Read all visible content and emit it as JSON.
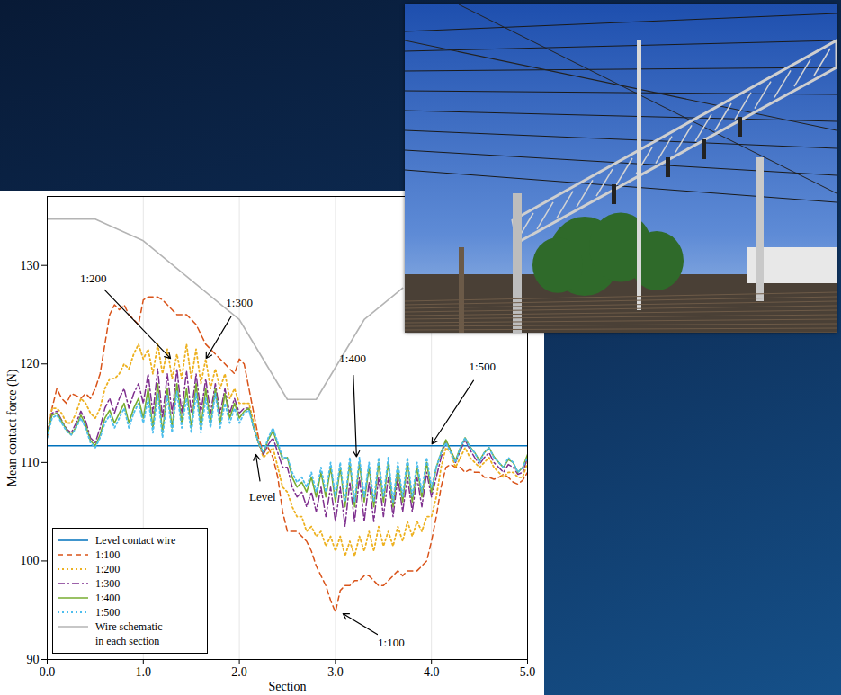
{
  "chart_data": {
    "type": "line",
    "x_label": "Section",
    "y_label": "Mean contact force (N)",
    "xlim": [
      0,
      5
    ],
    "xticks": [
      0,
      1,
      2,
      3,
      4,
      5
    ],
    "ylim": [
      90,
      137
    ],
    "yticks": [
      90,
      100,
      110,
      120,
      130
    ],
    "grid": "x",
    "legend": "lower left",
    "x": [
      0,
      0.05,
      0.1,
      0.15,
      0.2,
      0.25,
      0.3,
      0.35,
      0.4,
      0.45,
      0.5,
      0.55,
      0.6,
      0.65,
      0.7,
      0.75,
      0.8,
      0.85,
      0.9,
      0.95,
      1,
      1.05,
      1.1,
      1.15,
      1.2,
      1.25,
      1.3,
      1.35,
      1.4,
      1.45,
      1.5,
      1.55,
      1.6,
      1.65,
      1.7,
      1.75,
      1.8,
      1.85,
      1.9,
      1.95,
      2,
      2.05,
      2.1,
      2.15,
      2.2,
      2.25,
      2.3,
      2.35,
      2.4,
      2.45,
      2.5,
      2.55,
      2.6,
      2.65,
      2.7,
      2.75,
      2.8,
      2.85,
      2.9,
      2.95,
      3,
      3.05,
      3.1,
      3.15,
      3.2,
      3.25,
      3.3,
      3.35,
      3.4,
      3.45,
      3.5,
      3.55,
      3.6,
      3.65,
      3.7,
      3.75,
      3.8,
      3.85,
      3.9,
      3.95,
      4,
      4.05,
      4.1,
      4.15,
      4.2,
      4.25,
      4.3,
      4.35,
      4.4,
      4.45,
      4.5,
      4.55,
      4.6,
      4.65,
      4.7,
      4.75,
      4.8,
      4.85,
      4.9,
      4.95,
      5
    ],
    "series": [
      {
        "name": "Level contact wire",
        "color": "#0072bd",
        "line_style": "solid",
        "values": [
          111.7,
          111.7,
          111.7,
          111.7,
          111.7,
          111.7,
          111.7,
          111.7,
          111.7,
          111.7,
          111.7,
          111.7,
          111.7,
          111.7,
          111.7,
          111.7,
          111.7,
          111.7,
          111.7,
          111.7,
          111.7,
          111.7,
          111.7,
          111.7,
          111.7,
          111.7,
          111.7,
          111.7,
          111.7,
          111.7,
          111.7,
          111.7,
          111.7,
          111.7,
          111.7,
          111.7,
          111.7,
          111.7,
          111.7,
          111.7,
          111.7,
          111.7,
          111.7,
          111.7,
          111.7,
          111.7,
          111.7,
          111.7,
          111.7,
          111.7,
          111.7,
          111.7,
          111.7,
          111.7,
          111.7,
          111.7,
          111.7,
          111.7,
          111.7,
          111.7,
          111.7,
          111.7,
          111.7,
          111.7,
          111.7,
          111.7,
          111.7,
          111.7,
          111.7,
          111.7,
          111.7,
          111.7,
          111.7,
          111.7,
          111.7,
          111.7,
          111.7,
          111.7,
          111.7,
          111.7,
          111.7,
          111.7,
          111.7,
          111.7,
          111.7,
          111.7,
          111.7,
          111.7,
          111.7,
          111.7,
          111.7,
          111.7,
          111.7,
          111.7,
          111.7,
          111.7,
          111.7,
          111.7,
          111.7,
          111.7,
          111.7
        ]
      },
      {
        "name": "1:100",
        "color": "#d95319",
        "line_style": "dashed",
        "values": [
          112.5,
          115.5,
          117.5,
          116.5,
          116,
          117,
          116.8,
          116.5,
          117,
          116.5,
          117.5,
          119,
          122,
          125,
          126,
          125.5,
          126,
          125,
          124.5,
          124,
          126.5,
          126.8,
          126.8,
          126.8,
          126.5,
          126,
          125.5,
          125,
          125,
          125,
          124.5,
          124,
          123,
          122,
          121.5,
          121,
          120.5,
          120,
          119.5,
          119,
          120.5,
          120,
          117.5,
          115,
          112.5,
          111,
          111.5,
          110.5,
          108.5,
          105,
          103,
          103,
          103,
          102.5,
          102,
          101,
          99.5,
          98.5,
          97.5,
          96,
          94.8,
          97,
          97.5,
          97.5,
          98,
          98,
          98.5,
          98.5,
          98,
          97.5,
          97.5,
          98,
          98.5,
          99,
          98.5,
          99,
          99,
          99,
          99.5,
          100,
          102,
          104.5,
          107.5,
          109.5,
          109.8,
          109.5,
          109.5,
          109,
          109.3,
          109,
          109,
          108.5,
          108.5,
          108.3,
          108.5,
          108.8,
          108.5,
          108,
          107.8,
          108.2,
          109
        ]
      },
      {
        "name": "1:200",
        "color": "#edb120",
        "line_style": "dotted",
        "values": [
          113,
          115.5,
          115.5,
          115,
          114,
          114,
          115,
          116.5,
          116,
          115,
          114.5,
          115.5,
          117.5,
          118.5,
          118.5,
          119,
          120,
          119.5,
          121,
          122,
          120.5,
          121.5,
          119,
          122,
          119,
          121.5,
          118.5,
          121,
          118.5,
          122,
          118.5,
          121.5,
          118,
          120.5,
          117.5,
          119.5,
          117.5,
          119,
          116.5,
          117.5,
          116,
          116,
          116,
          114,
          112,
          110.5,
          111,
          111.5,
          109.5,
          107.5,
          107,
          105.5,
          104.5,
          104.5,
          103,
          103.5,
          102.5,
          103,
          101.5,
          102.5,
          101,
          102.5,
          100.5,
          102,
          100.5,
          102.5,
          101,
          103,
          101,
          103.5,
          101.5,
          103,
          101.5,
          103.5,
          102,
          104,
          102.5,
          104,
          103,
          104.5,
          104.5,
          106.5,
          109.5,
          111.5,
          111,
          109.5,
          110.5,
          111.5,
          110.5,
          110,
          109.5,
          110,
          110.5,
          109.5,
          109,
          108.5,
          109,
          109,
          108.5,
          108.5,
          110
        ]
      },
      {
        "name": "1:300",
        "color": "#7e2f8e",
        "line_style": "dashdot",
        "values": [
          113,
          115,
          115.2,
          114.3,
          113.4,
          113,
          114,
          115.2,
          114.2,
          112.5,
          112,
          113.5,
          115.5,
          116.5,
          115,
          116.5,
          117.5,
          115.5,
          117,
          118,
          116,
          119,
          115,
          119.5,
          114.5,
          119,
          115,
          119.5,
          115,
          119.3,
          115,
          119,
          115,
          118.5,
          115,
          118,
          115,
          117.5,
          115,
          116.5,
          115,
          115.5,
          115.5,
          113.5,
          112,
          110.8,
          111.8,
          112.5,
          111,
          109.5,
          109.5,
          107.5,
          106.5,
          107,
          105.5,
          107,
          105,
          107.5,
          104.5,
          107.5,
          104,
          107.5,
          103.5,
          108,
          104,
          108.5,
          104,
          108,
          104,
          108.5,
          104.5,
          108.5,
          104.5,
          108.5,
          105,
          108.5,
          105,
          108.5,
          105.5,
          109,
          106.5,
          108.5,
          110.5,
          112.2,
          111.2,
          110,
          111.2,
          112.3,
          111.3,
          110.5,
          109.8,
          110.5,
          111,
          110,
          109.5,
          109,
          109.8,
          109.5,
          108.8,
          109,
          110.5
        ]
      },
      {
        "name": "1:400",
        "color": "#77ac30",
        "line_style": "solid",
        "values": [
          112.8,
          114.8,
          115,
          114.2,
          113.3,
          112.8,
          113.6,
          114.8,
          113.8,
          112.2,
          111.7,
          112.8,
          114.5,
          115.3,
          114,
          115,
          116,
          114,
          115.5,
          116.5,
          114.5,
          117.5,
          113.5,
          118,
          113,
          117.5,
          113.5,
          118,
          114,
          117.5,
          113.5,
          118,
          113.5,
          117.5,
          114,
          117.5,
          114,
          117,
          114.5,
          116,
          114.5,
          115.2,
          115.5,
          113.5,
          112,
          111,
          112.3,
          113.2,
          111.8,
          110.3,
          110.5,
          108.5,
          107.5,
          108,
          107,
          108.5,
          106.5,
          109,
          106.5,
          109.5,
          106,
          109.5,
          105.5,
          110,
          105.5,
          110,
          106,
          109.5,
          105.5,
          110,
          106,
          110,
          105.5,
          109.5,
          106,
          110,
          106,
          109.5,
          106.5,
          110,
          107,
          109.5,
          111,
          112.3,
          111.2,
          110.2,
          111.5,
          112.5,
          111.6,
          111,
          110.2,
          111,
          111.5,
          110.6,
          110,
          109.5,
          110.3,
          110,
          109,
          109.5,
          110.8
        ]
      },
      {
        "name": "1:500",
        "color": "#4dbeee",
        "line_style": "dotted",
        "values": [
          112.5,
          114.5,
          114.8,
          114,
          113.2,
          112.8,
          113.5,
          114.5,
          113.5,
          112,
          111.5,
          112.5,
          114,
          114.8,
          113.5,
          114.5,
          115.5,
          113.5,
          115,
          116,
          114,
          116.5,
          113,
          117,
          112.5,
          116.8,
          113,
          117.2,
          113.5,
          116.5,
          113,
          117,
          113,
          116.5,
          113.5,
          117,
          113.5,
          116,
          114,
          115.5,
          114,
          115,
          115.3,
          113.5,
          112,
          111,
          112.5,
          113.5,
          112,
          110.5,
          110.5,
          109,
          108,
          108.5,
          107.5,
          109,
          107,
          109.5,
          107,
          110,
          106.5,
          110,
          106,
          110.5,
          106,
          110.5,
          106.5,
          110,
          106,
          110.5,
          106.5,
          110.5,
          106,
          110,
          106.5,
          110.5,
          106.5,
          110,
          107,
          110.5,
          107.5,
          109.5,
          111,
          112,
          111,
          110,
          111.5,
          112.5,
          111.5,
          111,
          110,
          111,
          111.5,
          110.5,
          110,
          109.5,
          110.5,
          110,
          109,
          109.5,
          110.5
        ]
      },
      {
        "name": "Wire schematic in each section",
        "color": "#b4b4b4",
        "line_style": "solid",
        "x": [
          0,
          0.5,
          1,
          2,
          2.5,
          2.8,
          3.3,
          3.7
        ],
        "values": [
          134.7,
          134.7,
          132.5,
          124.5,
          116.4,
          116.4,
          124.5,
          127.7
        ]
      }
    ],
    "annotations": [
      {
        "text": "1:200",
        "x": 0.48,
        "y": 128.7,
        "arrow_x": 1.29,
        "arrow_y": 120.5
      },
      {
        "text": "1:300",
        "x": 2.0,
        "y": 126.2,
        "arrow_x": 1.65,
        "arrow_y": 120.5
      },
      {
        "text": "1:400",
        "x": 3.18,
        "y": 120.5,
        "arrow_x": 3.22,
        "arrow_y": 110.5
      },
      {
        "text": "1:500",
        "x": 4.53,
        "y": 119.7,
        "arrow_x": 4.0,
        "arrow_y": 111.8
      },
      {
        "text": "Level",
        "x": 2.24,
        "y": 106.5,
        "arrow_x": 2.17,
        "arrow_y": 110.9
      },
      {
        "text": "1:100",
        "x": 3.58,
        "y": 91.7,
        "arrow_x": 3.07,
        "arrow_y": 94.7
      }
    ]
  }
}
